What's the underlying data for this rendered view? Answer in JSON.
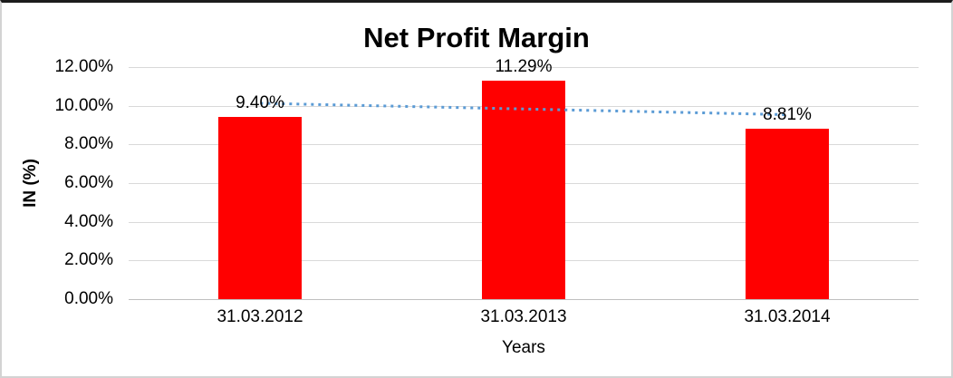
{
  "chart_data": {
    "type": "bar",
    "title": "Net Profit Margin",
    "xlabel": "Years",
    "ylabel": "IN (%)",
    "categories": [
      "31.03.2012",
      "31.03.2013",
      "31.03.2014"
    ],
    "values": [
      9.4,
      11.29,
      8.81
    ],
    "data_labels": [
      "9.40%",
      "11.29%",
      "8.81%"
    ],
    "y_ticks": [
      "0.00%",
      "2.00%",
      "4.00%",
      "6.00%",
      "8.00%",
      "10.00%",
      "12.00%"
    ],
    "ylim": [
      0,
      12
    ],
    "y_tick_step": 2,
    "grid": true,
    "legend": "none",
    "bar_color": "#ff0000",
    "gridline_color": "#d9d9d9",
    "trendline": {
      "type": "linear",
      "style": "dotted",
      "color": "#5b9bd5"
    }
  }
}
